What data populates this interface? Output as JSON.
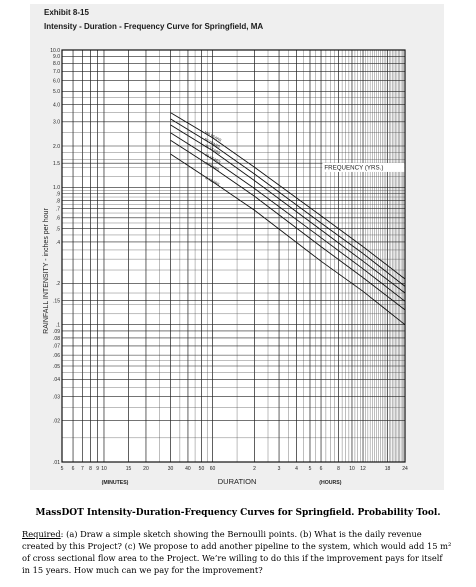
{
  "exhibit": {
    "label": "Exhibit 8-15",
    "title": "Intensity - Duration - Frequency Curve for Springfield, MA"
  },
  "chart_data": {
    "type": "line",
    "title": "Intensity - Duration - Frequency Curve for Springfield, MA",
    "xlabel": "DURATION",
    "ylabel": "RAINFALL INTENSITY - inches per hour",
    "x_scale": "log",
    "y_scale": "log",
    "xlim_minutes": [
      5,
      1440
    ],
    "ylim": [
      0.01,
      10
    ],
    "grid": true,
    "x_units": {
      "minutes": "(MINUTES)",
      "hours": "(HOURS)"
    },
    "x_ticks_minutes": [
      {
        "minutes": 5,
        "label": "5"
      },
      {
        "minutes": 6,
        "label": "6"
      },
      {
        "minutes": 7,
        "label": "7"
      },
      {
        "minutes": 8,
        "label": "8"
      },
      {
        "minutes": 9,
        "label": "9"
      },
      {
        "minutes": 10,
        "label": "10"
      },
      {
        "minutes": 15,
        "label": "15"
      },
      {
        "minutes": 20,
        "label": "20"
      },
      {
        "minutes": 30,
        "label": "30"
      },
      {
        "minutes": 40,
        "label": "40"
      },
      {
        "minutes": 50,
        "label": "50"
      },
      {
        "minutes": 60,
        "label": "60"
      },
      {
        "minutes": 120,
        "label": "2"
      },
      {
        "minutes": 180,
        "label": "3"
      },
      {
        "minutes": 240,
        "label": "4"
      },
      {
        "minutes": 300,
        "label": "5"
      },
      {
        "minutes": 360,
        "label": "6"
      },
      {
        "minutes": 480,
        "label": "8"
      },
      {
        "minutes": 600,
        "label": "10"
      },
      {
        "minutes": 720,
        "label": "12"
      },
      {
        "minutes": 1080,
        "label": "18"
      },
      {
        "minutes": 1440,
        "label": "24"
      }
    ],
    "y_ticks": [
      {
        "value": 10,
        "label": "10.0"
      },
      {
        "value": 9,
        "label": "9.0"
      },
      {
        "value": 8,
        "label": "8.0"
      },
      {
        "value": 7,
        "label": "7.0"
      },
      {
        "value": 6,
        "label": "6.0"
      },
      {
        "value": 5,
        "label": "5.0"
      },
      {
        "value": 4,
        "label": "4.0"
      },
      {
        "value": 3,
        "label": "3.0"
      },
      {
        "value": 2,
        "label": "2.0"
      },
      {
        "value": 1.5,
        "label": "1.5"
      },
      {
        "value": 1,
        "label": "1.0"
      },
      {
        "value": 0.9,
        "label": ".9"
      },
      {
        "value": 0.8,
        "label": ".8"
      },
      {
        "value": 0.7,
        "label": ".7"
      },
      {
        "value": 0.6,
        "label": ".6"
      },
      {
        "value": 0.5,
        "label": ".5"
      },
      {
        "value": 0.4,
        "label": ".4"
      },
      {
        "value": 0.2,
        "label": ".2"
      },
      {
        "value": 0.15,
        "label": ".15"
      },
      {
        "value": 0.1,
        "label": ".1"
      },
      {
        "value": 0.09,
        "label": ".09"
      },
      {
        "value": 0.08,
        "label": ".08"
      },
      {
        "value": 0.07,
        "label": ".07"
      },
      {
        "value": 0.06,
        "label": ".06"
      },
      {
        "value": 0.05,
        "label": ".05"
      },
      {
        "value": 0.04,
        "label": ".04"
      },
      {
        "value": 0.03,
        "label": ".03"
      },
      {
        "value": 0.02,
        "label": ".02"
      },
      {
        "value": 0.01,
        "label": ".01"
      }
    ],
    "legend_title": "FREQUENCY (YRS.)",
    "series": [
      {
        "name": "100 YEARS",
        "x_minutes": [
          30,
          60,
          120,
          360,
          720,
          1440
        ],
        "values": [
          3.5,
          2.3,
          1.4,
          0.62,
          0.37,
          0.215
        ]
      },
      {
        "name": "50 YEARS",
        "x_minutes": [
          30,
          60,
          120,
          360,
          720,
          1440
        ],
        "values": [
          3.15,
          2.05,
          1.25,
          0.55,
          0.33,
          0.19
        ]
      },
      {
        "name": "25 YEARS",
        "x_minutes": [
          30,
          60,
          120,
          360,
          720,
          1440
        ],
        "values": [
          2.85,
          1.85,
          1.12,
          0.49,
          0.29,
          0.17
        ]
      },
      {
        "name": "10 YEARS",
        "x_minutes": [
          30,
          60,
          120,
          360,
          720,
          1440
        ],
        "values": [
          2.5,
          1.6,
          0.98,
          0.43,
          0.255,
          0.148
        ]
      },
      {
        "name": "5 YEARS",
        "x_minutes": [
          30,
          60,
          120,
          360,
          720,
          1440
        ],
        "values": [
          2.2,
          1.4,
          0.86,
          0.37,
          0.22,
          0.128
        ]
      },
      {
        "name": "2 YEARS",
        "x_minutes": [
          30,
          60,
          120,
          360,
          720,
          1440
        ],
        "values": [
          1.75,
          1.1,
          0.68,
          0.29,
          0.175,
          0.1
        ]
      }
    ]
  },
  "caption": "MassDOT Intensity-Duration-Frequency Curves for Springfield.  Probability Tool.",
  "required": {
    "label": "Required",
    "text": ": (a) Draw a simple sketch showing the Bernoulli points.  (b)  What is the daily revenue created by this Project?  (c)  We propose to add another pipeline to the system, which would add 15 m² of cross sectional flow area to the Project.  We’re willing to do this if the improvement pays for itself in 15 years.  How much can we pay for the improvement?"
  }
}
